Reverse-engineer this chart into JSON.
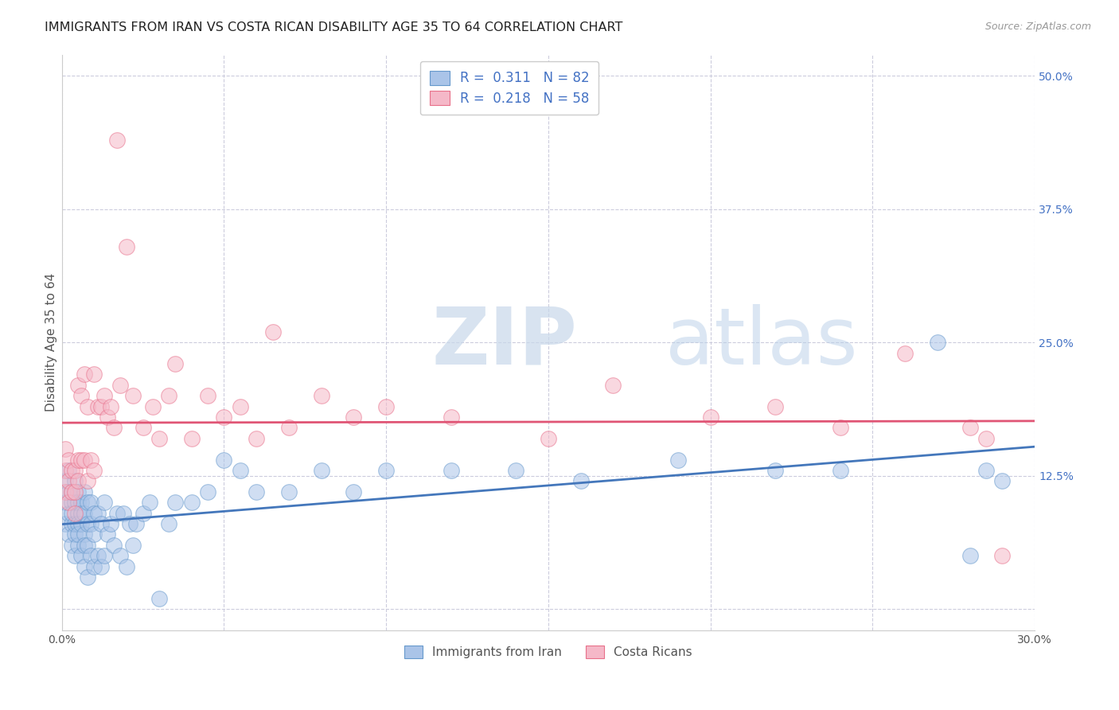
{
  "title": "IMMIGRANTS FROM IRAN VS COSTA RICAN DISABILITY AGE 35 TO 64 CORRELATION CHART",
  "source": "Source: ZipAtlas.com",
  "ylabel": "Disability Age 35 to 64",
  "xlim": [
    0,
    0.3
  ],
  "ylim": [
    -0.02,
    0.52
  ],
  "xticks": [
    0.0,
    0.05,
    0.1,
    0.15,
    0.2,
    0.25,
    0.3
  ],
  "xtick_labels": [
    "0.0%",
    "",
    "",
    "",
    "",
    "",
    "30.0%"
  ],
  "right_yticks": [
    0.0,
    0.125,
    0.25,
    0.375,
    0.5
  ],
  "right_ytick_labels": [
    "",
    "12.5%",
    "25.0%",
    "37.5%",
    "50.0%"
  ],
  "blue_color": "#aac4e8",
  "pink_color": "#f5b8c8",
  "blue_edge_color": "#6699cc",
  "pink_edge_color": "#e8708a",
  "blue_line_color": "#4477bb",
  "pink_line_color": "#e05575",
  "blue_r": 0.311,
  "blue_n": 82,
  "pink_r": 0.218,
  "pink_n": 58,
  "legend_label_blue": "Immigrants from Iran",
  "legend_label_pink": "Costa Ricans",
  "watermark_zip": "ZIP",
  "watermark_atlas": "atlas",
  "background_color": "#ffffff",
  "grid_color": "#ccccdd",
  "title_fontsize": 11.5,
  "axis_label_fontsize": 11,
  "tick_fontsize": 10,
  "blue_scatter_x": [
    0.001,
    0.001,
    0.001,
    0.002,
    0.002,
    0.002,
    0.002,
    0.003,
    0.003,
    0.003,
    0.003,
    0.003,
    0.004,
    0.004,
    0.004,
    0.004,
    0.004,
    0.005,
    0.005,
    0.005,
    0.005,
    0.005,
    0.005,
    0.006,
    0.006,
    0.006,
    0.006,
    0.007,
    0.007,
    0.007,
    0.007,
    0.007,
    0.008,
    0.008,
    0.008,
    0.008,
    0.009,
    0.009,
    0.009,
    0.01,
    0.01,
    0.01,
    0.011,
    0.011,
    0.012,
    0.012,
    0.013,
    0.013,
    0.014,
    0.015,
    0.016,
    0.017,
    0.018,
    0.019,
    0.02,
    0.021,
    0.022,
    0.023,
    0.025,
    0.027,
    0.03,
    0.033,
    0.035,
    0.04,
    0.045,
    0.05,
    0.055,
    0.06,
    0.07,
    0.08,
    0.09,
    0.1,
    0.12,
    0.14,
    0.16,
    0.19,
    0.22,
    0.24,
    0.27,
    0.28,
    0.285,
    0.29
  ],
  "blue_scatter_y": [
    0.1,
    0.12,
    0.08,
    0.09,
    0.11,
    0.07,
    0.13,
    0.08,
    0.1,
    0.06,
    0.11,
    0.09,
    0.07,
    0.1,
    0.12,
    0.08,
    0.05,
    0.09,
    0.11,
    0.06,
    0.08,
    0.1,
    0.07,
    0.05,
    0.08,
    0.1,
    0.09,
    0.04,
    0.07,
    0.09,
    0.06,
    0.11,
    0.03,
    0.06,
    0.08,
    0.1,
    0.05,
    0.08,
    0.1,
    0.04,
    0.07,
    0.09,
    0.05,
    0.09,
    0.04,
    0.08,
    0.05,
    0.1,
    0.07,
    0.08,
    0.06,
    0.09,
    0.05,
    0.09,
    0.04,
    0.08,
    0.06,
    0.08,
    0.09,
    0.1,
    0.01,
    0.08,
    0.1,
    0.1,
    0.11,
    0.14,
    0.13,
    0.11,
    0.11,
    0.13,
    0.11,
    0.13,
    0.13,
    0.13,
    0.12,
    0.14,
    0.13,
    0.13,
    0.25,
    0.05,
    0.13,
    0.12
  ],
  "pink_scatter_x": [
    0.001,
    0.001,
    0.001,
    0.002,
    0.002,
    0.002,
    0.003,
    0.003,
    0.004,
    0.004,
    0.004,
    0.005,
    0.005,
    0.005,
    0.006,
    0.006,
    0.007,
    0.007,
    0.008,
    0.008,
    0.009,
    0.01,
    0.01,
    0.011,
    0.012,
    0.013,
    0.014,
    0.015,
    0.016,
    0.017,
    0.018,
    0.02,
    0.022,
    0.025,
    0.028,
    0.03,
    0.033,
    0.035,
    0.04,
    0.045,
    0.05,
    0.055,
    0.06,
    0.065,
    0.07,
    0.08,
    0.09,
    0.1,
    0.12,
    0.15,
    0.17,
    0.2,
    0.22,
    0.24,
    0.26,
    0.28,
    0.285,
    0.29
  ],
  "pink_scatter_y": [
    0.13,
    0.11,
    0.15,
    0.14,
    0.1,
    0.12,
    0.13,
    0.11,
    0.13,
    0.11,
    0.09,
    0.14,
    0.12,
    0.21,
    0.14,
    0.2,
    0.14,
    0.22,
    0.12,
    0.19,
    0.14,
    0.13,
    0.22,
    0.19,
    0.19,
    0.2,
    0.18,
    0.19,
    0.17,
    0.44,
    0.21,
    0.34,
    0.2,
    0.17,
    0.19,
    0.16,
    0.2,
    0.23,
    0.16,
    0.2,
    0.18,
    0.19,
    0.16,
    0.26,
    0.17,
    0.2,
    0.18,
    0.19,
    0.18,
    0.16,
    0.21,
    0.18,
    0.19,
    0.17,
    0.24,
    0.17,
    0.16,
    0.05
  ]
}
